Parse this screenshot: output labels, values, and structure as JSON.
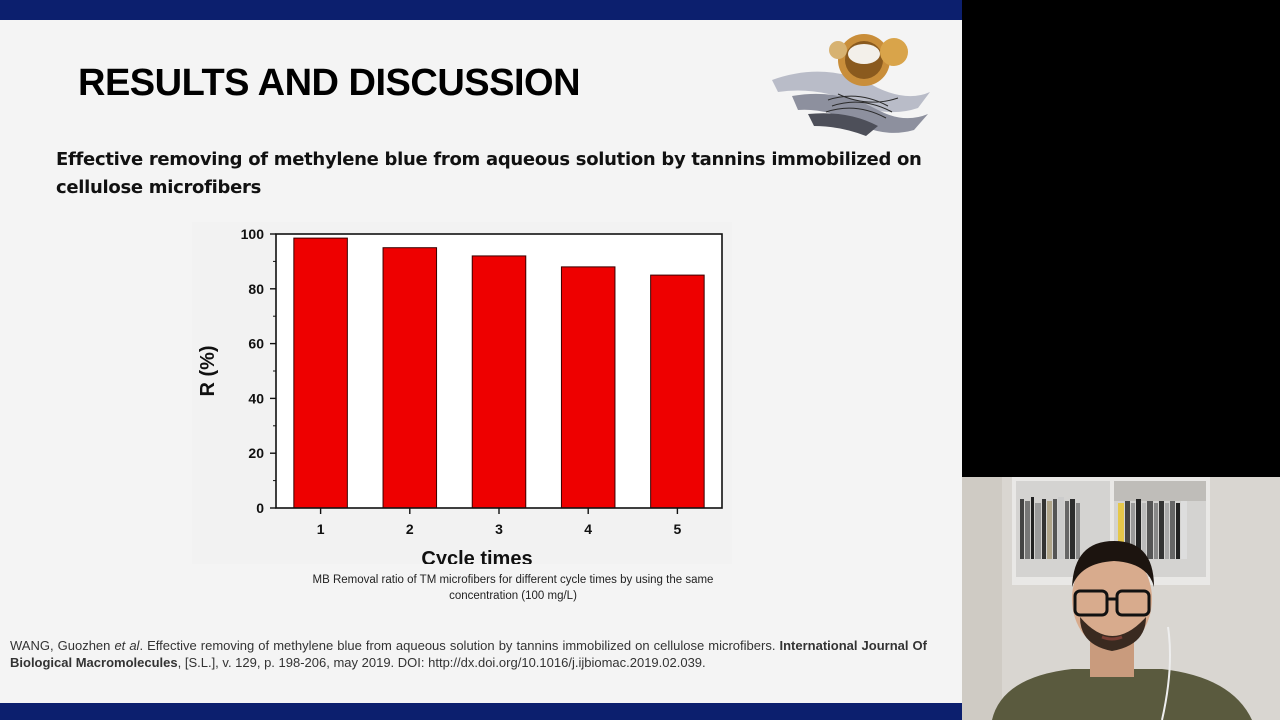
{
  "slide": {
    "title": "RESULTS AND DISCUSSION",
    "subtitle": "Effective removing of methylene blue from aqueous solution by tannins immobilized on cellulose microfibers",
    "caption": "MB Removal  ratio of TM microfibers  for different  cycle times by using the same concentration (100 mg/L)",
    "reference": {
      "authors": "WANG, Guozhen ",
      "etal": "et al",
      "title_part": ". Effective removing of methylene blue from aqueous solution by tannins immobilized on cellulose microfibers. ",
      "journal": "International Journal Of Biological Macromolecules",
      "details": ", [S.L.], v. 129, p. 198-206, may 2019. DOI: http://dx.doi.org/10.1016/j.ijbiomac.2019.02.039."
    },
    "colors": {
      "bar": "#ee0000",
      "bar_edge": "#3a0000",
      "banner": "#0c1f6e"
    }
  },
  "chart_data": {
    "type": "bar",
    "categories": [
      "1",
      "2",
      "3",
      "4",
      "5"
    ],
    "values": [
      98.5,
      95,
      92,
      88,
      85
    ],
    "xlabel": "Cycle times",
    "ylabel": "R (%)",
    "ylim": [
      0,
      100
    ],
    "yticks": [
      0,
      20,
      40,
      60,
      80,
      100
    ],
    "grid": false
  },
  "webcam": {
    "description_icon": "presenter-video-icon"
  }
}
